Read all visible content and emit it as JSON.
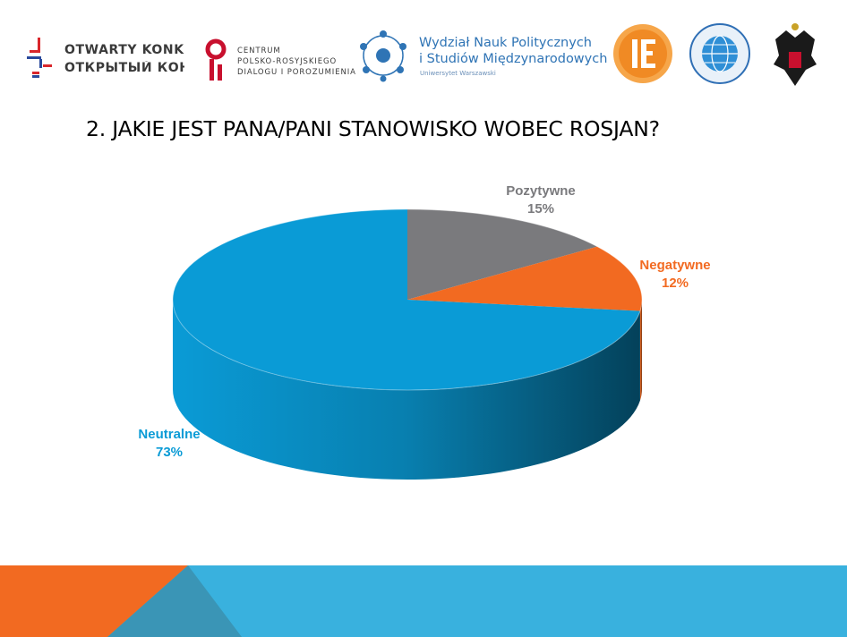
{
  "logos": {
    "logo1": {
      "line1": "OTWARTY KONKURS",
      "line2": "ОТКРЫТЫЙ КОНКУРС",
      "icon": "competition-mark-icon"
    },
    "logo2": {
      "line1": "CENTRUM",
      "line2": "POLSKO-ROSYJSKIEGO",
      "line3": "DIALOGU I POROZUMIENIA",
      "icon": "dialogue-centre-icon"
    },
    "logo3": {
      "line1": "Wydział Nauk Politycznych",
      "line2": "i Studiów Międzynarodowych",
      "line3": "Uniwersytet Warszawski",
      "icon": "network-circle-icon"
    },
    "logo4": {
      "icon": "institute-seal-icon"
    },
    "logo5": {
      "icon": "globe-seal-icon"
    },
    "logo6": {
      "icon": "double-eagle-crest-icon"
    }
  },
  "colors": {
    "neutral": "#0a9bd6",
    "positive": "#7a7a7d",
    "negative": "#f26a21",
    "footer_orange": "#f26a21",
    "footer_blue": "#39b1de",
    "footer_teal": "#3a95b6"
  },
  "chart_data": {
    "type": "pie",
    "title": "2. JAKIE JEST PANA/PANI STANOWISKO WOBEC ROSJAN?",
    "style": "3d",
    "categories": [
      "Pozytywne",
      "Negatywne",
      "Neutralne"
    ],
    "values": [
      15,
      12,
      73
    ],
    "value_labels": [
      "15%",
      "12%",
      "73%"
    ],
    "colors": [
      "#7a7a7d",
      "#f26a21",
      "#0a9bd6"
    ]
  }
}
